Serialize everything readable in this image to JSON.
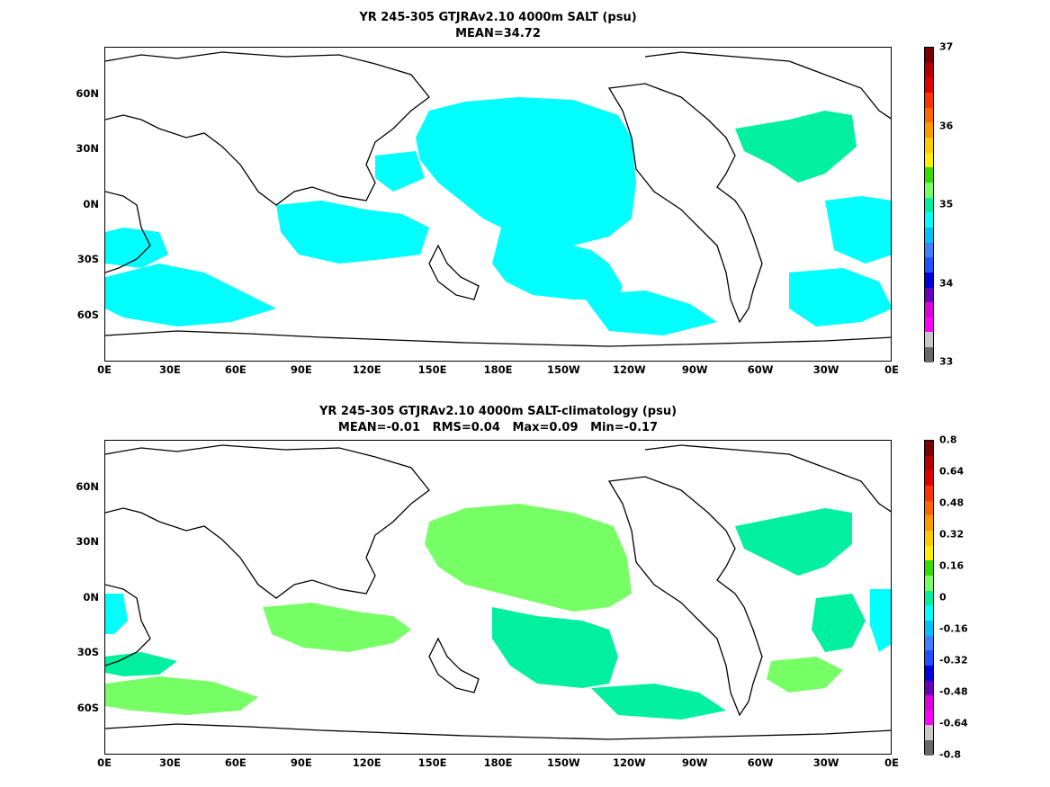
{
  "panel_top": {
    "title_line1": "YR 245-305 GTJRAv2.10 4000m SALT (psu)",
    "title_line2": "MEAN=34.72",
    "colorbar_labels": [
      "37",
      "36",
      "35",
      "34",
      "33"
    ],
    "colorbar_colors": [
      "#7a0000",
      "#b30000",
      "#e00000",
      "#ff3300",
      "#ff6600",
      "#ff9900",
      "#ffcc00",
      "#ffee00",
      "#33dd00",
      "#77ff66",
      "#00f0a0",
      "#00ffff",
      "#00c0ff",
      "#4080ff",
      "#2050ff",
      "#0000dd",
      "#6600bb",
      "#dd00dd",
      "#ff00ff",
      "#c8c8c8",
      "#686868"
    ]
  },
  "panel_bottom": {
    "title_line1": "YR 245-305 GTJRAv2.10 4000m SALT-climatology (psu)",
    "title_line2": "MEAN=-0.01   RMS=0.04   Max=0.09   Min=-0.17",
    "colorbar_labels": [
      "0.8",
      "0.64",
      "0.48",
      "0.32",
      "0.16",
      "0",
      "-0.16",
      "-0.32",
      "-0.48",
      "-0.64",
      "-0.8"
    ],
    "colorbar_colors": [
      "#7a0000",
      "#b30000",
      "#e00000",
      "#ff3300",
      "#ff6600",
      "#ff9900",
      "#ffcc00",
      "#ffee00",
      "#33dd00",
      "#77ff66",
      "#00f0a0",
      "#00ffff",
      "#00c0ff",
      "#4080ff",
      "#2050ff",
      "#0000dd",
      "#6600bb",
      "#dd00dd",
      "#ff00ff",
      "#c8c8c8",
      "#686868"
    ]
  },
  "x_ticks": [
    "0E",
    "30E",
    "60E",
    "90E",
    "120E",
    "150E",
    "180E",
    "150W",
    "120W",
    "90W",
    "60W",
    "30W",
    "0E"
  ],
  "y_ticks": [
    "60N",
    "30N",
    "0N",
    "30S",
    "60S"
  ],
  "colors": {
    "top_fill": "#00ffff",
    "top_fill_atlantic": "#00f0a0",
    "bottom_pos": "#77ff66",
    "bottom_neg": "#00f0a0",
    "bottom_neg2": "#00ffff",
    "land_outline": "#000000"
  }
}
